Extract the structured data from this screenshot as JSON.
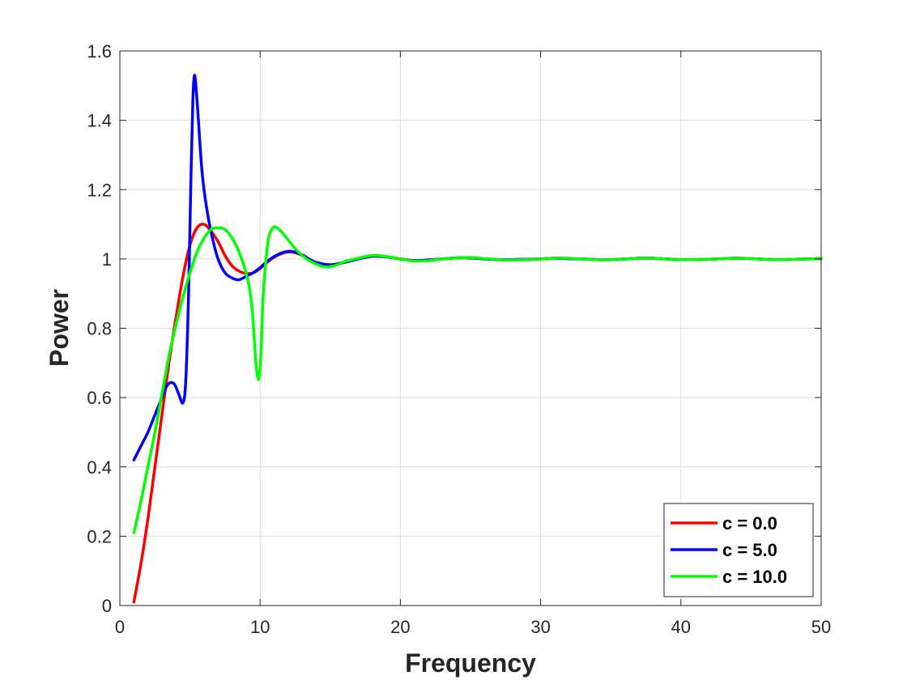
{
  "chart_data": {
    "type": "line",
    "title": "",
    "xlabel": "Frequency",
    "ylabel": "Power",
    "xlim": [
      0,
      50
    ],
    "ylim": [
      0,
      1.6
    ],
    "xticks": [
      0,
      10,
      20,
      30,
      40,
      50
    ],
    "yticks": [
      0,
      0.2,
      0.4,
      0.6,
      0.8,
      1,
      1.2,
      1.4,
      1.6
    ],
    "xtick_labels": [
      "0",
      "10",
      "20",
      "30",
      "40",
      "50"
    ],
    "ytick_labels": [
      "0",
      "0.2",
      "0.4",
      "0.6",
      "0.8",
      "1",
      "1.2",
      "1.4",
      "1.6"
    ],
    "grid": true,
    "legend_position": "bottom-right",
    "series": [
      {
        "name": "c = 0.0",
        "color": "#ff0000",
        "points": [
          [
            1,
            0.01
          ],
          [
            1.5,
            0.12
          ],
          [
            2,
            0.25
          ],
          [
            2.5,
            0.4
          ],
          [
            3,
            0.55
          ],
          [
            3.5,
            0.7
          ],
          [
            4,
            0.83
          ],
          [
            4.5,
            0.95
          ],
          [
            5,
            1.04
          ],
          [
            5.5,
            1.09
          ],
          [
            6,
            1.1
          ],
          [
            6.5,
            1.08
          ],
          [
            7,
            1.05
          ],
          [
            7.5,
            1.01
          ],
          [
            8,
            0.98
          ],
          [
            8.5,
            0.965
          ],
          [
            9,
            0.958
          ],
          [
            9.5,
            0.96
          ],
          [
            10,
            0.972
          ],
          [
            10.5,
            0.99
          ],
          [
            11,
            1.005
          ],
          [
            11.5,
            1.015
          ],
          [
            12,
            1.02
          ],
          [
            12.5,
            1.018
          ],
          [
            13,
            1.01
          ],
          [
            13.5,
            0.998
          ],
          [
            14,
            0.99
          ],
          [
            15,
            0.983
          ],
          [
            16,
            0.99
          ],
          [
            17,
            1.0
          ],
          [
            18,
            1.008
          ],
          [
            19,
            1.006
          ],
          [
            20,
            1.0
          ],
          [
            21,
            0.995
          ],
          [
            22,
            0.997
          ],
          [
            23,
            1.0
          ],
          [
            24,
            1.003
          ],
          [
            25,
            1.003
          ],
          [
            26,
            1.0
          ],
          [
            27,
            0.998
          ],
          [
            28,
            0.998
          ],
          [
            30,
            1.0
          ],
          [
            31,
            1.002
          ],
          [
            32,
            1.001
          ],
          [
            33,
            1.0
          ],
          [
            34,
            0.998
          ],
          [
            35,
            0.998
          ],
          [
            36,
            1.0
          ],
          [
            37,
            1.002
          ],
          [
            38,
            1.002
          ],
          [
            39,
            1.0
          ],
          [
            40,
            0.998
          ],
          [
            41,
            0.998
          ],
          [
            42,
            0.999
          ],
          [
            43,
            1.001
          ],
          [
            44,
            1.002
          ],
          [
            45,
            1.001
          ],
          [
            46,
            0.999
          ],
          [
            47,
            0.998
          ],
          [
            48,
            0.999
          ],
          [
            49,
            1.0
          ],
          [
            50,
            1.001
          ]
        ]
      },
      {
        "name": "c = 5.0",
        "color": "#0000ff",
        "points": [
          [
            1,
            0.42
          ],
          [
            1.5,
            0.46
          ],
          [
            2,
            0.5
          ],
          [
            2.5,
            0.55
          ],
          [
            3,
            0.6
          ],
          [
            3.3,
            0.63
          ],
          [
            3.6,
            0.643
          ],
          [
            3.9,
            0.638
          ],
          [
            4.2,
            0.61
          ],
          [
            4.5,
            0.585
          ],
          [
            4.7,
            0.65
          ],
          [
            4.9,
            0.9
          ],
          [
            5.05,
            1.2
          ],
          [
            5.2,
            1.45
          ],
          [
            5.3,
            1.525
          ],
          [
            5.4,
            1.51
          ],
          [
            5.6,
            1.4
          ],
          [
            5.8,
            1.28
          ],
          [
            6,
            1.2
          ],
          [
            6.3,
            1.12
          ],
          [
            6.6,
            1.06
          ],
          [
            7,
            1.0
          ],
          [
            7.5,
            0.96
          ],
          [
            8,
            0.945
          ],
          [
            8.5,
            0.94
          ],
          [
            9,
            0.95
          ],
          [
            9.5,
            0.96
          ],
          [
            10,
            0.975
          ],
          [
            10.5,
            0.993
          ],
          [
            11,
            1.007
          ],
          [
            11.5,
            1.017
          ],
          [
            12,
            1.022
          ],
          [
            12.5,
            1.02
          ],
          [
            13,
            1.012
          ],
          [
            13.5,
            1.0
          ],
          [
            14,
            0.99
          ],
          [
            15,
            0.983
          ],
          [
            16,
            0.99
          ],
          [
            17,
            1.0
          ],
          [
            18,
            1.008
          ],
          [
            19,
            1.006
          ],
          [
            20,
            1.0
          ],
          [
            21,
            0.995
          ],
          [
            22,
            0.997
          ],
          [
            23,
            1.0
          ],
          [
            24,
            1.003
          ],
          [
            25,
            1.003
          ],
          [
            26,
            1.0
          ],
          [
            27,
            0.998
          ],
          [
            28,
            0.998
          ],
          [
            30,
            1.0
          ],
          [
            31,
            1.002
          ],
          [
            32,
            1.001
          ],
          [
            33,
            1.0
          ],
          [
            34,
            0.998
          ],
          [
            35,
            0.998
          ],
          [
            36,
            1.0
          ],
          [
            37,
            1.002
          ],
          [
            38,
            1.002
          ],
          [
            39,
            1.0
          ],
          [
            40,
            0.998
          ],
          [
            41,
            0.998
          ],
          [
            42,
            0.999
          ],
          [
            43,
            1.001
          ],
          [
            44,
            1.002
          ],
          [
            45,
            1.001
          ],
          [
            46,
            0.999
          ],
          [
            47,
            0.998
          ],
          [
            48,
            0.999
          ],
          [
            49,
            1.0
          ],
          [
            50,
            1.001
          ]
        ]
      },
      {
        "name": "c = 10.0",
        "color": "#00ff00",
        "points": [
          [
            1,
            0.21
          ],
          [
            1.5,
            0.3
          ],
          [
            2,
            0.4
          ],
          [
            2.5,
            0.5
          ],
          [
            3,
            0.61
          ],
          [
            3.5,
            0.72
          ],
          [
            4,
            0.81
          ],
          [
            4.5,
            0.89
          ],
          [
            5,
            0.96
          ],
          [
            5.5,
            1.02
          ],
          [
            6,
            1.06
          ],
          [
            6.5,
            1.085
          ],
          [
            7,
            1.09
          ],
          [
            7.5,
            1.085
          ],
          [
            8,
            1.06
          ],
          [
            8.5,
            1.02
          ],
          [
            9,
            0.96
          ],
          [
            9.3,
            0.9
          ],
          [
            9.5,
            0.82
          ],
          [
            9.7,
            0.7
          ],
          [
            9.9,
            0.652
          ],
          [
            10.05,
            0.72
          ],
          [
            10.2,
            0.88
          ],
          [
            10.4,
            0.99
          ],
          [
            10.6,
            1.06
          ],
          [
            10.9,
            1.09
          ],
          [
            11.2,
            1.09
          ],
          [
            11.6,
            1.075
          ],
          [
            12,
            1.055
          ],
          [
            12.5,
            1.03
          ],
          [
            13,
            1.01
          ],
          [
            13.5,
            0.995
          ],
          [
            14,
            0.985
          ],
          [
            14.5,
            0.978
          ],
          [
            15,
            0.978
          ],
          [
            15.5,
            0.983
          ],
          [
            16,
            0.992
          ],
          [
            17,
            1.002
          ],
          [
            18,
            1.01
          ],
          [
            19,
            1.007
          ],
          [
            20,
            1.0
          ],
          [
            21,
            0.994
          ],
          [
            22,
            0.995
          ],
          [
            23,
            1.0
          ],
          [
            24,
            1.003
          ],
          [
            25,
            1.004
          ],
          [
            26,
            1.001
          ],
          [
            27,
            0.998
          ],
          [
            28,
            0.997
          ],
          [
            29,
            0.998
          ],
          [
            30,
            1.0
          ],
          [
            31,
            1.002
          ],
          [
            32,
            1.002
          ],
          [
            33,
            1.0
          ],
          [
            34,
            0.998
          ],
          [
            35,
            0.998
          ],
          [
            36,
            1.0
          ],
          [
            37,
            1.002
          ],
          [
            38,
            1.002
          ],
          [
            39,
            1.0
          ],
          [
            40,
            0.998
          ],
          [
            41,
            0.998
          ],
          [
            42,
            0.999
          ],
          [
            43,
            1.001
          ],
          [
            44,
            1.002
          ],
          [
            45,
            1.001
          ],
          [
            46,
            0.999
          ],
          [
            47,
            0.998
          ],
          [
            48,
            0.999
          ],
          [
            49,
            1.0
          ],
          [
            50,
            1.001
          ]
        ]
      }
    ]
  }
}
